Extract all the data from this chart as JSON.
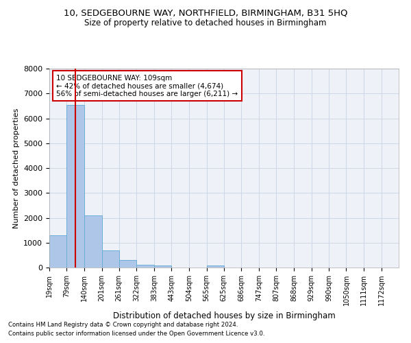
{
  "title_line1": "10, SEDGEBOURNE WAY, NORTHFIELD, BIRMINGHAM, B31 5HQ",
  "title_line2": "Size of property relative to detached houses in Birmingham",
  "xlabel": "Distribution of detached houses by size in Birmingham",
  "ylabel": "Number of detached properties",
  "footnote1": "Contains HM Land Registry data © Crown copyright and database right 2024.",
  "footnote2": "Contains public sector information licensed under the Open Government Licence v3.0.",
  "annotation_line1": "10 SEDGEBOURNE WAY: 109sqm",
  "annotation_line2": "← 42% of detached houses are smaller (4,674)",
  "annotation_line3": "56% of semi-detached houses are larger (6,211) →",
  "property_size": 109,
  "bar_edges": [
    19,
    79,
    140,
    201,
    261,
    322,
    383,
    443,
    504,
    565,
    625,
    686,
    747,
    807,
    868,
    929,
    990,
    1050,
    1111,
    1172,
    1232
  ],
  "bar_heights": [
    1300,
    6550,
    2090,
    680,
    300,
    115,
    85,
    0,
    0,
    75,
    0,
    0,
    0,
    0,
    0,
    0,
    0,
    0,
    0,
    0
  ],
  "bar_color": "#aec6e8",
  "bar_edge_color": "#6aaed6",
  "vline_color": "#cc0000",
  "vline_x": 109,
  "grid_color": "#d0d8e8",
  "bg_color": "#eef2f8",
  "ylim": [
    0,
    8000
  ],
  "yticks": [
    0,
    1000,
    2000,
    3000,
    4000,
    5000,
    6000,
    7000,
    8000
  ],
  "annotation_box_color": "#cc0000"
}
